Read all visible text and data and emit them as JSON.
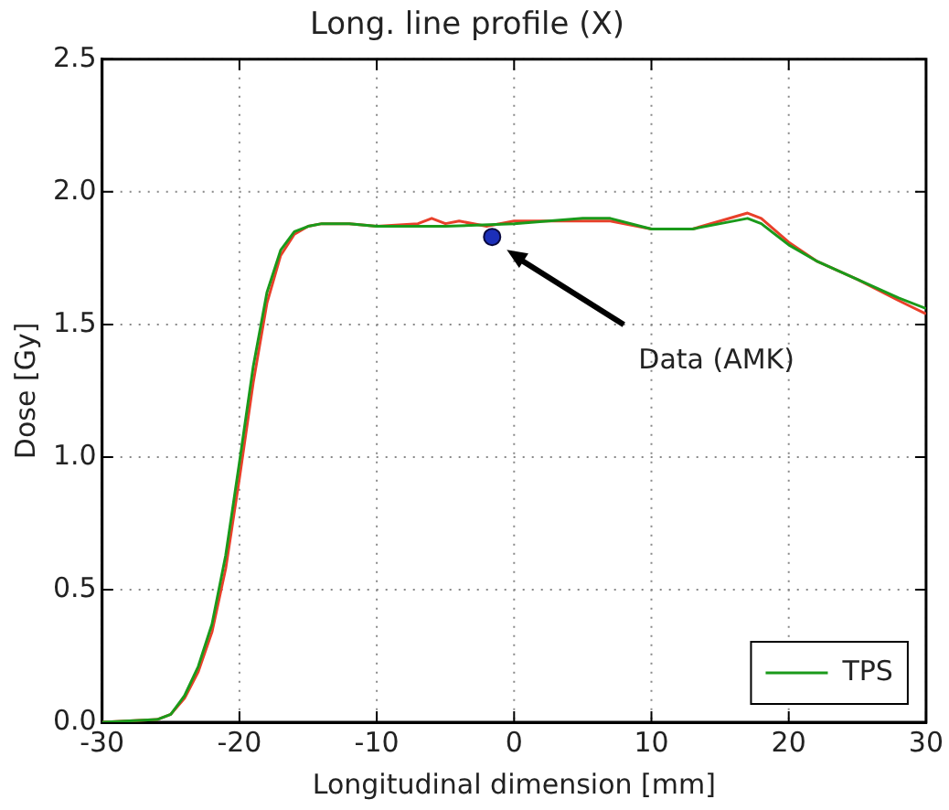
{
  "chart_data": {
    "type": "line",
    "title": "Long. line profile (X)",
    "xlabel": "Longitudinal dimension [mm]",
    "ylabel": "Dose [Gy]",
    "xlim": [
      -30,
      30
    ],
    "xticks": [
      -30,
      -20,
      -10,
      0,
      10,
      20,
      30
    ],
    "ylim": [
      0,
      2.5
    ],
    "yticks": [
      {
        "value": 0,
        "label": "0.0"
      },
      {
        "value": 0.5,
        "label": "0.5"
      },
      {
        "value": 1,
        "label": "1.0"
      },
      {
        "value": 1.5,
        "label": "1.5"
      },
      {
        "value": 2,
        "label": "2.0"
      },
      {
        "value": 2.5,
        "label": "2.5"
      }
    ],
    "grid": true,
    "legend": "bottom right",
    "marker": "none",
    "line_style": "solid",
    "series": [
      {
        "name": "TPS",
        "color": "#1a9a1a",
        "x": [
          -30,
          -26,
          -25,
          -24,
          -23,
          -22,
          -21,
          -20,
          -19,
          -18,
          -17,
          -16,
          -15,
          -14,
          -12,
          -10,
          -5,
          0,
          5,
          7,
          10,
          13,
          15,
          17,
          18,
          20,
          22,
          25,
          28,
          30
        ],
        "values": [
          0,
          0.01,
          0.03,
          0.1,
          0.21,
          0.37,
          0.63,
          0.98,
          1.34,
          1.62,
          1.78,
          1.85,
          1.87,
          1.88,
          1.88,
          1.87,
          1.87,
          1.88,
          1.9,
          1.9,
          1.86,
          1.86,
          1.88,
          1.9,
          1.88,
          1.8,
          1.74,
          1.67,
          1.6,
          1.56
        ]
      },
      {
        "color": "#e8402a",
        "x": [
          -30,
          -26,
          -25,
          -24,
          -23,
          -22,
          -21,
          -20,
          -19,
          -18,
          -17,
          -16,
          -15,
          -14,
          -12,
          -10,
          -7,
          -6,
          -5,
          -4,
          -2,
          0,
          5,
          7,
          10,
          13,
          15,
          17,
          18,
          20,
          22,
          25,
          28,
          30
        ],
        "values": [
          0,
          0.01,
          0.03,
          0.09,
          0.19,
          0.34,
          0.58,
          0.92,
          1.28,
          1.58,
          1.76,
          1.84,
          1.87,
          1.88,
          1.88,
          1.87,
          1.88,
          1.9,
          1.88,
          1.89,
          1.87,
          1.89,
          1.89,
          1.89,
          1.86,
          1.86,
          1.89,
          1.92,
          1.9,
          1.81,
          1.74,
          1.67,
          1.59,
          1.54
        ]
      },
      {
        "type": "scatter",
        "marker": "circle",
        "color": "#1c2fb8",
        "x": [
          -1.6
        ],
        "values": [
          1.83
        ]
      }
    ],
    "annotations": [
      "Data (AMK)"
    ]
  }
}
